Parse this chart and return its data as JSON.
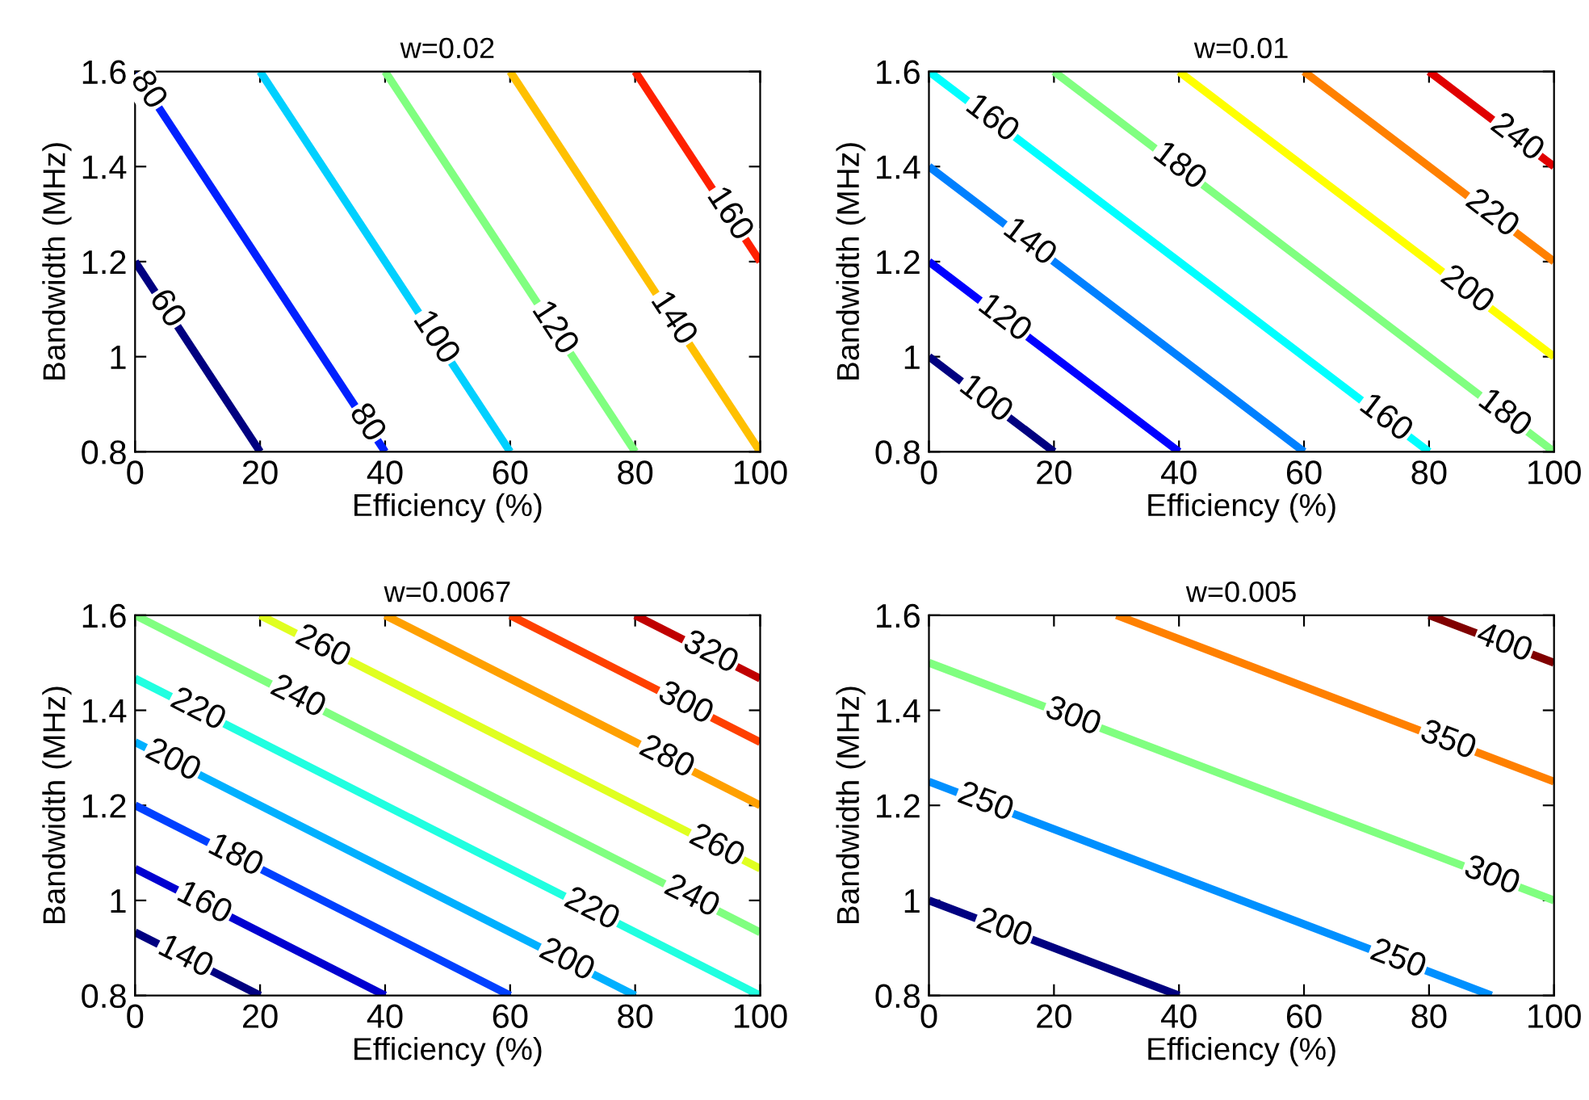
{
  "chart_data": [
    {
      "type": "line",
      "title": "w=0.02",
      "xlabel": "Efficiency (%)",
      "ylabel": "Bandwidth (MHz)",
      "xlim": [
        0,
        100
      ],
      "ylim": [
        0.8,
        1.6
      ],
      "xticks": [
        0,
        20,
        40,
        60,
        80,
        100
      ],
      "yticks": [
        0.8,
        1,
        1.2,
        1.4,
        1.6
      ],
      "series": [
        {
          "color": "#000080",
          "x": [
            0,
            20
          ],
          "values": [
            1.2,
            0.8
          ]
        },
        {
          "color": "#0020ff",
          "x": [
            0,
            40
          ],
          "values": [
            1.6,
            0.8
          ]
        },
        {
          "color": "#00d0ff",
          "x": [
            20,
            60
          ],
          "values": [
            1.6,
            0.8
          ]
        },
        {
          "color": "#80ff80",
          "x": [
            40,
            80
          ],
          "values": [
            1.6,
            0.8
          ]
        },
        {
          "color": "#ffc000",
          "x": [
            60,
            100
          ],
          "values": [
            1.6,
            0.8
          ]
        },
        {
          "color": "#ff2000",
          "x": [
            80,
            100
          ],
          "values": [
            1.6,
            1.2
          ]
        }
      ],
      "annotations": [
        {
          "text": "80",
          "x": 2,
          "y": 1.56
        },
        {
          "text": "60",
          "x": 5,
          "y": 1.1
        },
        {
          "text": "80",
          "x": 37,
          "y": 0.86
        },
        {
          "text": "100",
          "x": 48,
          "y": 1.04
        },
        {
          "text": "120",
          "x": 67,
          "y": 1.06
        },
        {
          "text": "140",
          "x": 86,
          "y": 1.08
        },
        {
          "text": "160",
          "x": 95,
          "y": 1.3
        }
      ]
    },
    {
      "type": "line",
      "title": "w=0.01",
      "xlabel": "Efficiency (%)",
      "ylabel": "Bandwidth (MHz)",
      "xlim": [
        0,
        100
      ],
      "ylim": [
        0.8,
        1.6
      ],
      "xticks": [
        0,
        20,
        40,
        60,
        80,
        100
      ],
      "yticks": [
        0.8,
        1,
        1.2,
        1.4,
        1.6
      ],
      "series": [
        {
          "color": "#000080",
          "x": [
            0,
            20
          ],
          "values": [
            1.0,
            0.8
          ]
        },
        {
          "color": "#0000ff",
          "x": [
            0,
            40
          ],
          "values": [
            1.2,
            0.8
          ]
        },
        {
          "color": "#0080ff",
          "x": [
            0,
            60
          ],
          "values": [
            1.4,
            0.8
          ]
        },
        {
          "color": "#00ffff",
          "x": [
            0,
            80
          ],
          "values": [
            1.6,
            0.8
          ]
        },
        {
          "color": "#80ff80",
          "x": [
            20,
            100
          ],
          "values": [
            1.6,
            0.8
          ]
        },
        {
          "color": "#ffff00",
          "x": [
            40,
            100
          ],
          "values": [
            1.6,
            1.0
          ]
        },
        {
          "color": "#ff8000",
          "x": [
            60,
            100
          ],
          "values": [
            1.6,
            1.2
          ]
        },
        {
          "color": "#e00000",
          "x": [
            80,
            100
          ],
          "values": [
            1.6,
            1.4
          ]
        }
      ],
      "annotations": [
        {
          "text": "160",
          "x": 10,
          "y": 1.5
        },
        {
          "text": "180",
          "x": 40,
          "y": 1.4
        },
        {
          "text": "140",
          "x": 16,
          "y": 1.24
        },
        {
          "text": "120",
          "x": 12,
          "y": 1.08
        },
        {
          "text": "100",
          "x": 9,
          "y": 0.91
        },
        {
          "text": "160",
          "x": 73,
          "y": 0.87
        },
        {
          "text": "200",
          "x": 86,
          "y": 1.14
        },
        {
          "text": "220",
          "x": 90,
          "y": 1.3
        },
        {
          "text": "240",
          "x": 94,
          "y": 1.46
        },
        {
          "text": "180",
          "x": 92,
          "y": 0.88
        }
      ]
    },
    {
      "type": "line",
      "title": "w=0.0067",
      "xlabel": "Efficiency (%)",
      "ylabel": "Bandwidth (MHz)",
      "xlim": [
        0,
        100
      ],
      "ylim": [
        0.8,
        1.6
      ],
      "xticks": [
        0,
        20,
        40,
        60,
        80,
        100
      ],
      "yticks": [
        0.8,
        1,
        1.2,
        1.4,
        1.6
      ],
      "series": [
        {
          "color": "#000080",
          "x": [
            0,
            20
          ],
          "values": [
            0.933,
            0.8
          ]
        },
        {
          "color": "#0000d0",
          "x": [
            0,
            40
          ],
          "values": [
            1.067,
            0.8
          ]
        },
        {
          "color": "#0040ff",
          "x": [
            0,
            60
          ],
          "values": [
            1.2,
            0.8
          ]
        },
        {
          "color": "#00b0ff",
          "x": [
            0,
            80
          ],
          "values": [
            1.333,
            0.8
          ]
        },
        {
          "color": "#20ffe0",
          "x": [
            0,
            100
          ],
          "values": [
            1.467,
            0.8
          ]
        },
        {
          "color": "#80ff80",
          "x": [
            0,
            100
          ],
          "values": [
            1.6,
            0.933
          ]
        },
        {
          "color": "#e0ff20",
          "x": [
            20,
            100
          ],
          "values": [
            1.6,
            1.067
          ]
        },
        {
          "color": "#ffa000",
          "x": [
            40,
            100
          ],
          "values": [
            1.6,
            1.2
          ]
        },
        {
          "color": "#ff4000",
          "x": [
            60,
            100
          ],
          "values": [
            1.6,
            1.333
          ]
        },
        {
          "color": "#c00000",
          "x": [
            80,
            100
          ],
          "values": [
            1.6,
            1.467
          ]
        }
      ],
      "annotations": [
        {
          "text": "260",
          "x": 30,
          "y": 1.533
        },
        {
          "text": "320",
          "x": 92,
          "y": 1.52
        },
        {
          "text": "240",
          "x": 26,
          "y": 1.427
        },
        {
          "text": "220",
          "x": 10,
          "y": 1.4
        },
        {
          "text": "300",
          "x": 88,
          "y": 1.413
        },
        {
          "text": "280",
          "x": 85,
          "y": 1.3
        },
        {
          "text": "200",
          "x": 6,
          "y": 1.293
        },
        {
          "text": "180",
          "x": 16,
          "y": 1.093
        },
        {
          "text": "260",
          "x": 93,
          "y": 1.113
        },
        {
          "text": "160",
          "x": 11,
          "y": 0.993
        },
        {
          "text": "240",
          "x": 89,
          "y": 1.007
        },
        {
          "text": "220",
          "x": 73,
          "y": 0.98
        },
        {
          "text": "140",
          "x": 8,
          "y": 0.88
        },
        {
          "text": "200",
          "x": 69,
          "y": 0.873
        }
      ]
    },
    {
      "type": "line",
      "title": "w=0.005",
      "xlabel": "Efficiency (%)",
      "ylabel": "Bandwidth (MHz)",
      "xlim": [
        0,
        100
      ],
      "ylim": [
        0.8,
        1.6
      ],
      "xticks": [
        0,
        20,
        40,
        60,
        80,
        100
      ],
      "yticks": [
        0.8,
        1,
        1.2,
        1.4,
        1.6
      ],
      "series": [
        {
          "color": "#000080",
          "x": [
            0,
            40
          ],
          "values": [
            1.0,
            0.8
          ]
        },
        {
          "color": "#0090ff",
          "x": [
            0,
            90
          ],
          "values": [
            1.25,
            0.8
          ]
        },
        {
          "color": "#80ff80",
          "x": [
            0,
            100
          ],
          "values": [
            1.5,
            1.0
          ]
        },
        {
          "color": "#ff8000",
          "x": [
            30,
            100
          ],
          "values": [
            1.6,
            1.25
          ]
        },
        {
          "color": "#800000",
          "x": [
            80,
            100
          ],
          "values": [
            1.6,
            1.5
          ]
        }
      ],
      "annotations": [
        {
          "text": "300",
          "x": 23,
          "y": 1.385
        },
        {
          "text": "250",
          "x": 9,
          "y": 1.205
        },
        {
          "text": "350",
          "x": 83,
          "y": 1.335
        },
        {
          "text": "200",
          "x": 12,
          "y": 0.94
        },
        {
          "text": "300",
          "x": 90,
          "y": 1.05
        },
        {
          "text": "250",
          "x": 75,
          "y": 0.875
        },
        {
          "text": "400",
          "x": 92,
          "y": 1.54
        }
      ]
    }
  ]
}
